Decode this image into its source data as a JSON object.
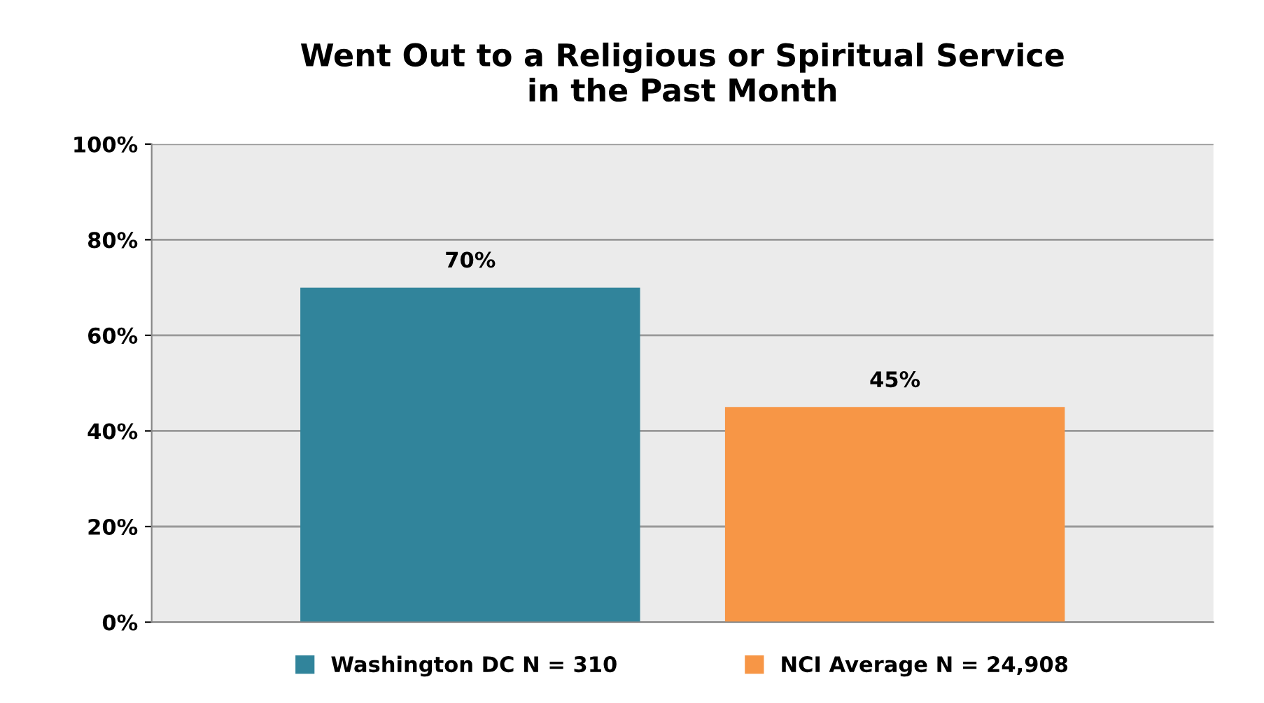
{
  "chart_data": {
    "type": "bar",
    "title": "Went Out to a Religious or Spiritual Service\nin the Past Month",
    "categories": [
      null
    ],
    "series": [
      {
        "name": "Washington DC N = 310",
        "color": "#31849b",
        "values": [
          70
        ],
        "value_labels": [
          "70%"
        ]
      },
      {
        "name": "NCI Average N = 24,908",
        "color": "#f79646",
        "values": [
          45
        ],
        "value_labels": [
          "45%"
        ]
      }
    ],
    "ylim": [
      0,
      100
    ],
    "yticks": [
      {
        "value": 0,
        "label": "0%"
      },
      {
        "value": 20,
        "label": "20%"
      },
      {
        "value": 40,
        "label": "40%"
      },
      {
        "value": 60,
        "label": "60%"
      },
      {
        "value": 80,
        "label": "80%"
      },
      {
        "value": 100,
        "label": "100%"
      }
    ],
    "grid": "y",
    "legend": "bottom"
  }
}
